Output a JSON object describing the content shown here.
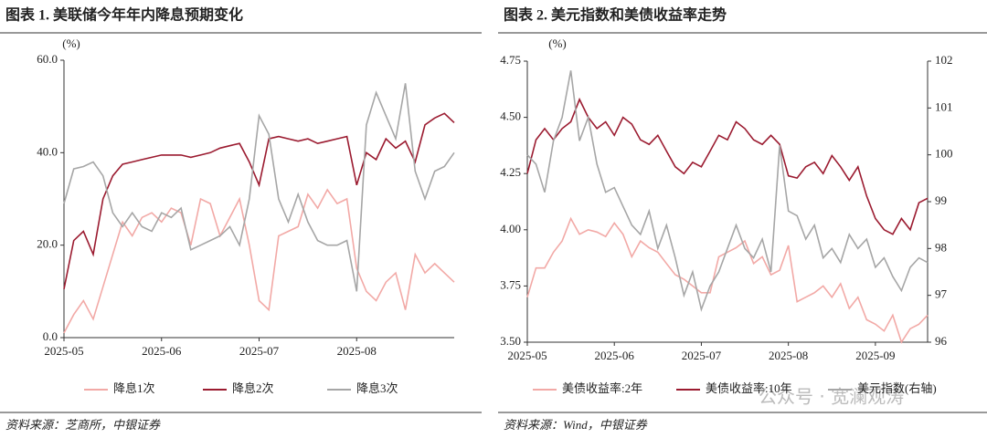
{
  "chart_data": [
    {
      "type": "line",
      "title": "图表 1. 美联储今年年内降息预期变化",
      "y_label": "(%)",
      "source": "资料来源：芝商所，中银证券",
      "categories": [
        "2025-05",
        null,
        null,
        null,
        null,
        null,
        null,
        null,
        null,
        null,
        "2025-06",
        null,
        null,
        null,
        null,
        null,
        null,
        null,
        null,
        null,
        "2025-07",
        null,
        null,
        null,
        null,
        null,
        null,
        null,
        null,
        null,
        "2025-08",
        null,
        null,
        null,
        null,
        null,
        null,
        null,
        null,
        null,
        null
      ],
      "ylim": [
        0,
        60
      ],
      "yticks": [
        {
          "value": 0,
          "label": "0.0"
        },
        {
          "value": 20,
          "label": "20.0"
        },
        {
          "value": 40,
          "label": "40.0"
        },
        {
          "value": 60,
          "label": "60.0"
        }
      ],
      "series": [
        {
          "name": "降息1次",
          "color": "#f2a9a6",
          "values": [
            1,
            5,
            8,
            4,
            11,
            18,
            25,
            22,
            26,
            27,
            25,
            28,
            27,
            20,
            30,
            29,
            22,
            26,
            30,
            20,
            8,
            6,
            22,
            23,
            24,
            31,
            28,
            32,
            29,
            30,
            15,
            10,
            8,
            12,
            14,
            6,
            18,
            14,
            16,
            14,
            12
          ]
        },
        {
          "name": "降息2次",
          "color": "#9b1b30",
          "values": [
            10.5,
            21,
            23,
            18,
            30,
            35,
            37.5,
            38,
            38.5,
            39,
            39.5,
            39.5,
            39.5,
            39,
            39.5,
            40,
            41,
            41.5,
            42,
            38,
            33,
            43,
            43.5,
            43,
            42.5,
            43,
            42,
            42.5,
            43,
            43.5,
            33,
            40,
            38.5,
            43,
            41,
            42.5,
            38,
            46,
            47.5,
            48.5,
            46.5
          ]
        },
        {
          "name": "降息3次",
          "color": "#a6a6a6",
          "values": [
            29,
            36.5,
            37,
            38,
            35,
            27,
            24,
            27,
            24,
            23,
            27,
            26,
            28,
            19,
            20,
            21,
            22,
            24,
            20,
            30,
            48,
            44,
            30,
            25,
            31,
            25,
            21,
            20,
            20,
            21,
            10,
            46,
            53,
            48,
            43,
            55,
            36,
            30,
            36,
            37,
            40
          ]
        }
      ]
    },
    {
      "type": "line",
      "title": "图表 2. 美元指数和美债收益率走势",
      "y_label": "(%)",
      "source": "资料来源：Wind，中银证券",
      "categories": [
        "2025-05",
        null,
        null,
        null,
        null,
        null,
        null,
        null,
        null,
        null,
        "2025-06",
        null,
        null,
        null,
        null,
        null,
        null,
        null,
        null,
        null,
        "2025-07",
        null,
        null,
        null,
        null,
        null,
        null,
        null,
        null,
        null,
        "2025-08",
        null,
        null,
        null,
        null,
        null,
        null,
        null,
        null,
        null,
        "2025-09",
        null,
        null,
        null,
        null,
        null,
        null
      ],
      "ylim": [
        3.5,
        4.75
      ],
      "yticks": [
        {
          "value": 3.5,
          "label": "3.50"
        },
        {
          "value": 3.75,
          "label": "3.75"
        },
        {
          "value": 4,
          "label": "4.00"
        },
        {
          "value": 4.25,
          "label": "4.25"
        },
        {
          "value": 4.5,
          "label": "4.50"
        },
        {
          "value": 4.75,
          "label": "4.75"
        }
      ],
      "y2lim": [
        96,
        102
      ],
      "y2ticks": [
        96,
        97,
        98,
        99,
        100,
        101,
        102
      ],
      "series": [
        {
          "name": "美债收益率:2年",
          "color": "#f2a9a6",
          "values": [
            3.7,
            3.83,
            3.83,
            3.9,
            3.95,
            4.05,
            3.98,
            4.0,
            3.99,
            3.97,
            4.03,
            3.98,
            3.88,
            3.95,
            3.92,
            3.9,
            3.85,
            3.8,
            3.78,
            3.75,
            3.72,
            3.72,
            3.88,
            3.9,
            3.92,
            3.95,
            3.85,
            3.88,
            3.8,
            3.82,
            3.93,
            3.68,
            3.7,
            3.72,
            3.75,
            3.7,
            3.76,
            3.65,
            3.7,
            3.6,
            3.58,
            3.55,
            3.62,
            3.5,
            3.56,
            3.58,
            3.62
          ]
        },
        {
          "name": "美债收益率:10年",
          "color": "#9b1b30",
          "values": [
            4.25,
            4.4,
            4.45,
            4.4,
            4.45,
            4.48,
            4.58,
            4.5,
            4.45,
            4.48,
            4.42,
            4.5,
            4.47,
            4.4,
            4.38,
            4.42,
            4.35,
            4.28,
            4.25,
            4.3,
            4.28,
            4.35,
            4.42,
            4.4,
            4.48,
            4.45,
            4.4,
            4.38,
            4.42,
            4.38,
            4.24,
            4.23,
            4.28,
            4.3,
            4.25,
            4.33,
            4.28,
            4.22,
            4.28,
            4.15,
            4.05,
            4.0,
            3.98,
            4.05,
            4.0,
            4.12,
            4.14
          ]
        },
        {
          "name": "美元指数(右轴)",
          "color": "#a6a6a6",
          "axis": "y2",
          "values": [
            100,
            99.8,
            99.2,
            100.3,
            100.8,
            101.8,
            100.3,
            100.8,
            99.8,
            99.2,
            99.3,
            98.9,
            98.5,
            98.3,
            98.8,
            98.0,
            98.5,
            97.8,
            97.0,
            97.5,
            96.7,
            97.2,
            97.5,
            98.0,
            98.5,
            98.0,
            97.8,
            98.2,
            97.5,
            100.2,
            98.8,
            98.7,
            98.2,
            98.5,
            97.8,
            98.0,
            97.7,
            98.3,
            98.0,
            98.2,
            97.6,
            97.8,
            97.4,
            97.1,
            97.6,
            97.8,
            97.7
          ]
        }
      ]
    }
  ],
  "watermark": "公众号 · 宽澜观涛"
}
